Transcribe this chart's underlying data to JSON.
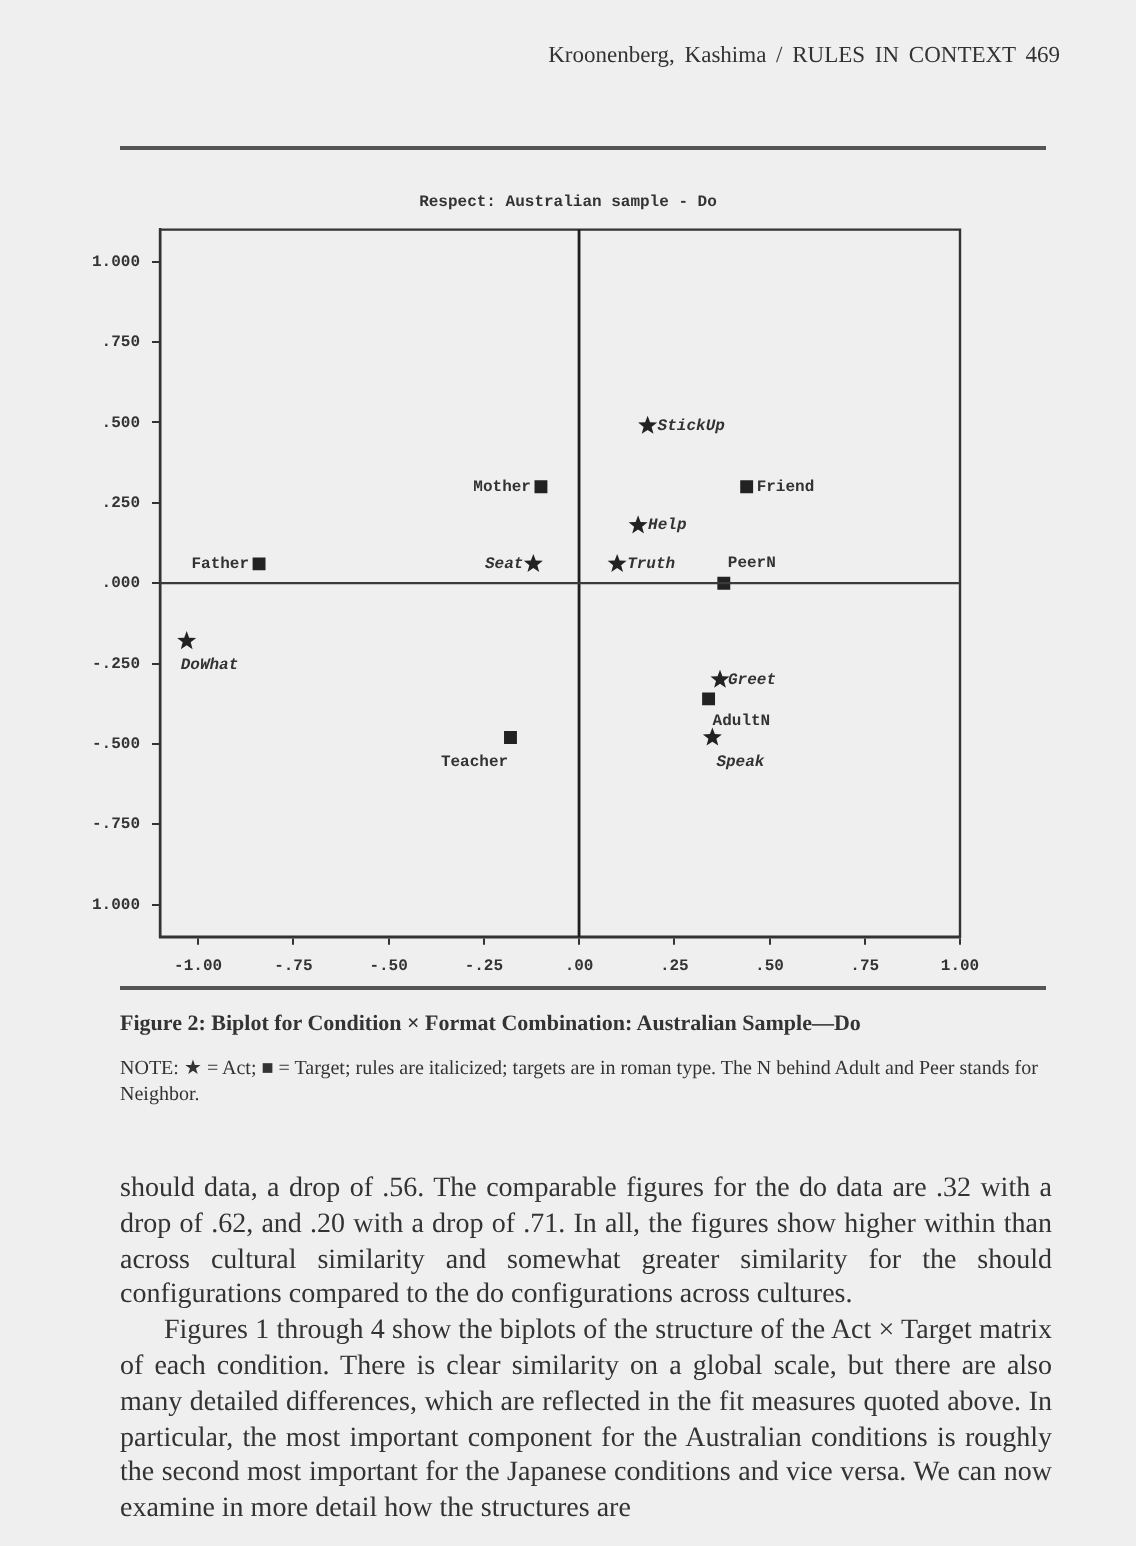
{
  "chart_data": {
    "type": "scatter",
    "title": "Respect: Australian sample - Do",
    "xlim": [
      -1.1,
      1.0
    ],
    "ylim": [
      -1.1,
      1.1
    ],
    "xticks": [
      {
        "value": -1,
        "label": "-1.00"
      },
      {
        "value": -0.75,
        "label": "-.75"
      },
      {
        "value": -0.5,
        "label": "-.50"
      },
      {
        "value": -0.25,
        "label": "-.25"
      },
      {
        "value": 0,
        "label": ".00"
      },
      {
        "value": 0.25,
        "label": ".25"
      },
      {
        "value": 0.5,
        "label": ".50"
      },
      {
        "value": 0.75,
        "label": ".75"
      },
      {
        "value": 1,
        "label": "1.00"
      }
    ],
    "yticks": [
      {
        "value": 1,
        "label": "1.000"
      },
      {
        "value": 0.75,
        "label": ".750"
      },
      {
        "value": 0.5,
        "label": ".500"
      },
      {
        "value": 0.25,
        "label": ".250"
      },
      {
        "value": 0,
        "label": ".000"
      },
      {
        "value": -0.25,
        "label": "-.250"
      },
      {
        "value": -0.5,
        "label": "-.500"
      },
      {
        "value": -0.75,
        "label": "-.750"
      },
      {
        "value": -1,
        "label": "1.000"
      }
    ],
    "series": [
      {
        "color": "#222222",
        "marker": "star",
        "x": [
          0.18,
          0.155,
          0.1,
          -0.12,
          -1.03,
          0.37,
          0.35
        ],
        "values": [
          0.49,
          0.18,
          0.06,
          0.06,
          -0.18,
          -0.3,
          -0.48
        ]
      },
      {
        "color": "#222222",
        "marker": "square",
        "x": [
          -0.1,
          0.44,
          -0.84,
          0.38,
          0.34,
          -0.18
        ],
        "values": [
          0.3,
          0.3,
          0.06,
          0.0,
          -0.36,
          -0.48
        ]
      }
    ],
    "ref_lines": [
      {
        "axis": "x",
        "value": 0,
        "color": "#1e1e1e"
      },
      {
        "axis": "y",
        "value": 0,
        "color": "#3a3a3a"
      }
    ],
    "annotations": [
      "Kroonenberg, Kashima / RULES IN CONTEXT 469",
      "Figure 2: Biplot for Condition × Format Combination: Australian Sample—Do",
      "NOTE: ★ = Act; ■ = Target; rules are italicized; targets are in roman type. The N behind Adult and Peer stands for Neighbor.",
      "should data, a drop of .56. The comparable figures for the do data are .32 with a drop of .62, and .20 with a drop of .71. In all, the figures show higher within than across cultural similarity and somewhat greater similarity for the should configurations compared to the do configurations across cultures.",
      "Figures 1 through 4 show the biplots of the structure of the Act × Target matrix of each condition. There is clear similarity on a global scale, but there are also many detailed differences, which are reflected in the fit measures quoted above. In particular, the most important component for the Australian conditions is roughly the second most important for the Japanese conditions and vice versa. We can now examine in more detail how the structures are",
      {
        "text": "StickUp",
        "x": 0.18,
        "y": 0.49
      },
      {
        "text": "Help",
        "x": 0.155,
        "y": 0.18
      },
      {
        "text": "Truth",
        "x": 0.1,
        "y": 0.06
      },
      {
        "text": "Seat",
        "x": -0.12,
        "y": 0.06
      },
      {
        "text": "DoWhat",
        "x": -1.03,
        "y": -0.18
      },
      {
        "text": "Greet",
        "x": 0.37,
        "y": -0.3
      },
      {
        "text": "Speak",
        "x": 0.35,
        "y": -0.48
      },
      {
        "text": "Mother",
        "x": -0.1,
        "y": 0.3
      },
      {
        "text": "Friend",
        "x": 0.44,
        "y": 0.3
      },
      {
        "text": "Father",
        "x": -0.84,
        "y": 0.06
      },
      {
        "text": "PeerN",
        "x": 0.38,
        "y": 0.0
      },
      {
        "text": "AdultN",
        "x": 0.34,
        "y": -0.36
      },
      {
        "text": "Teacher",
        "x": -0.18,
        "y": -0.48
      }
    ]
  }
}
